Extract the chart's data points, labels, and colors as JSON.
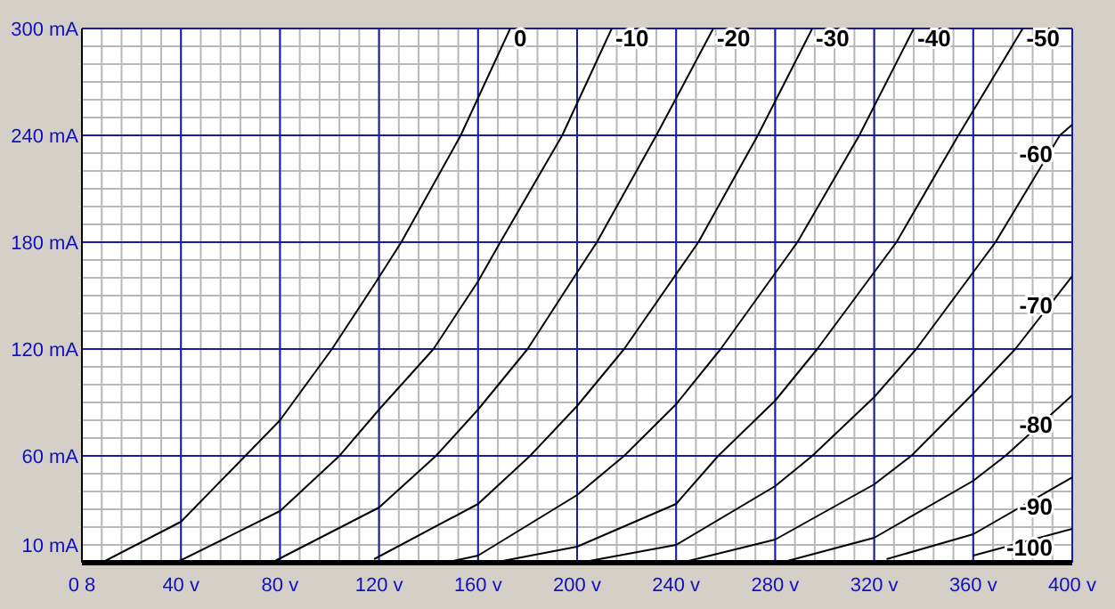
{
  "chart_data": {
    "type": "line",
    "xlim": [
      0,
      400
    ],
    "ylim": [
      0,
      300
    ],
    "xticks": [
      {
        "value": 0,
        "label": "0 8"
      },
      {
        "value": 40,
        "label": "40 v"
      },
      {
        "value": 80,
        "label": "80 v"
      },
      {
        "value": 120,
        "label": "120 v"
      },
      {
        "value": 160,
        "label": "160 v"
      },
      {
        "value": 200,
        "label": "200 v"
      },
      {
        "value": 240,
        "label": "240 v"
      },
      {
        "value": 280,
        "label": "280 v"
      },
      {
        "value": 320,
        "label": "320 v"
      },
      {
        "value": 360,
        "label": "360 v"
      },
      {
        "value": 400,
        "label": "400 v"
      }
    ],
    "yticks": [
      {
        "value": 10,
        "label": "10 mA"
      },
      {
        "value": 60,
        "label": "60 mA"
      },
      {
        "value": 120,
        "label": "120 mA"
      },
      {
        "value": 180,
        "label": "180 mA"
      },
      {
        "value": 240,
        "label": "240 mA"
      },
      {
        "value": 300,
        "label": "300 mA"
      }
    ],
    "grid": true,
    "marker": "none",
    "line_style": "solid",
    "series": [
      {
        "name": "0",
        "color": "#000000",
        "x": [
          8,
          40,
          66,
          80,
          101,
          118,
          129,
          153,
          173
        ],
        "values": [
          0,
          23,
          60,
          80,
          120,
          156,
          180,
          240,
          300
        ]
      },
      {
        "name": "-10",
        "color": "#000000",
        "x": [
          38,
          80,
          104,
          120,
          142,
          160,
          169,
          194,
          214
        ],
        "values": [
          0,
          29,
          60,
          86,
          120,
          158,
          180,
          240,
          300
        ]
      },
      {
        "name": "-20",
        "color": "#000000",
        "x": [
          78,
          120,
          143,
          160,
          180,
          200,
          208,
          232,
          255
        ],
        "values": [
          1,
          31,
          60,
          86,
          120,
          163,
          180,
          240,
          300
        ]
      },
      {
        "name": "-30",
        "color": "#000000",
        "x": [
          118,
          160,
          181,
          200,
          219,
          249,
          273,
          295
        ],
        "values": [
          2,
          33,
          60,
          88,
          120,
          180,
          240,
          300
        ]
      },
      {
        "name": "-40",
        "color": "#000000",
        "x": [
          150,
          160,
          200,
          219,
          240,
          258,
          289,
          314,
          336
        ],
        "values": [
          1,
          4,
          38,
          60,
          89,
          120,
          180,
          240,
          300
        ]
      },
      {
        "name": "-50",
        "color": "#000000",
        "x": [
          170,
          200,
          240,
          257,
          280,
          297,
          329,
          354,
          380
        ],
        "values": [
          1,
          9,
          33,
          60,
          91,
          120,
          180,
          240,
          300
        ]
      },
      {
        "name": "-60",
        "color": "#000000",
        "x": [
          205,
          240,
          280,
          295,
          320,
          337,
          369,
          395,
          400
        ],
        "values": [
          1,
          10,
          43,
          60,
          93,
          120,
          180,
          240,
          246
        ]
      },
      {
        "name": "-70",
        "color": "#000000",
        "x": [
          245,
          280,
          320,
          335,
          360,
          377,
          400
        ],
        "values": [
          1,
          13,
          44,
          60,
          95,
          120,
          161
        ]
      },
      {
        "name": "-80",
        "color": "#000000",
        "x": [
          285,
          320,
          360,
          373,
          400
        ],
        "values": [
          1,
          14,
          46,
          60,
          94
        ]
      },
      {
        "name": "-90",
        "color": "#000000",
        "x": [
          325,
          360,
          400
        ],
        "values": [
          2,
          16,
          48
        ]
      },
      {
        "name": "-100",
        "color": "#000000",
        "x": [
          360,
          400
        ],
        "values": [
          4,
          19
        ]
      }
    ]
  }
}
